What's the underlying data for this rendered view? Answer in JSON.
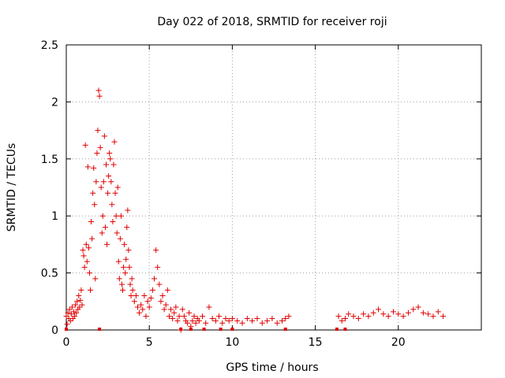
{
  "chart_data": {
    "type": "scatter",
    "title": "Day 022 of 2018, SRMTID for receiver roji",
    "xlabel": "GPS time / hours",
    "ylabel": "SRMTID / TECUs",
    "xlim": [
      0,
      25
    ],
    "ylim": [
      0,
      2.5
    ],
    "xticks": [
      "0",
      "5",
      "10",
      "15",
      "20"
    ],
    "xtick_values": [
      0,
      5,
      10,
      15,
      20
    ],
    "yticks": [
      "0",
      "0.5",
      "1",
      "1.5",
      "2",
      "2.5"
    ],
    "ytick_values": [
      0,
      0.5,
      1,
      1.5,
      2,
      2.5
    ],
    "grid": true,
    "marker": "+",
    "color": "#e00000",
    "series": [
      {
        "name": "SRMTID",
        "points": [
          [
            0.0,
            0.12
          ],
          [
            0.05,
            0.05
          ],
          [
            0.1,
            0.15
          ],
          [
            0.15,
            0.1
          ],
          [
            0.2,
            0.18
          ],
          [
            0.25,
            0.08
          ],
          [
            0.3,
            0.14
          ],
          [
            0.35,
            0.2
          ],
          [
            0.4,
            0.1
          ],
          [
            0.45,
            0.16
          ],
          [
            0.5,
            0.12
          ],
          [
            0.55,
            0.22
          ],
          [
            0.6,
            0.15
          ],
          [
            0.65,
            0.25
          ],
          [
            0.7,
            0.18
          ],
          [
            0.75,
            0.3
          ],
          [
            0.8,
            0.2
          ],
          [
            0.85,
            0.26
          ],
          [
            0.9,
            0.35
          ],
          [
            0.95,
            0.22
          ],
          [
            1.0,
            0.7
          ],
          [
            1.05,
            0.65
          ],
          [
            1.1,
            0.55
          ],
          [
            1.15,
            1.62
          ],
          [
            1.2,
            0.75
          ],
          [
            1.25,
            0.6
          ],
          [
            1.3,
            1.43
          ],
          [
            1.35,
            0.72
          ],
          [
            1.4,
            0.5
          ],
          [
            1.45,
            0.35
          ],
          [
            1.5,
            0.95
          ],
          [
            1.55,
            0.8
          ],
          [
            1.6,
            1.2
          ],
          [
            1.65,
            1.42
          ],
          [
            1.7,
            1.1
          ],
          [
            1.75,
            0.45
          ],
          [
            1.8,
            1.3
          ],
          [
            1.85,
            1.55
          ],
          [
            1.9,
            1.75
          ],
          [
            1.95,
            2.1
          ],
          [
            2.0,
            2.05
          ],
          [
            2.05,
            1.6
          ],
          [
            2.1,
            1.25
          ],
          [
            2.15,
            0.85
          ],
          [
            2.2,
            1.0
          ],
          [
            2.25,
            1.3
          ],
          [
            2.3,
            1.7
          ],
          [
            2.35,
            0.9
          ],
          [
            2.4,
            1.45
          ],
          [
            2.45,
            0.75
          ],
          [
            2.5,
            1.2
          ],
          [
            2.55,
            1.35
          ],
          [
            2.6,
            1.55
          ],
          [
            2.65,
            1.5
          ],
          [
            2.7,
            1.3
          ],
          [
            2.75,
            1.1
          ],
          [
            2.8,
            0.95
          ],
          [
            2.85,
            1.45
          ],
          [
            2.9,
            1.65
          ],
          [
            2.95,
            1.2
          ],
          [
            3.0,
            1.0
          ],
          [
            3.05,
            0.85
          ],
          [
            3.1,
            1.25
          ],
          [
            3.15,
            0.6
          ],
          [
            3.2,
            0.45
          ],
          [
            3.25,
            0.8
          ],
          [
            3.3,
            1.0
          ],
          [
            3.35,
            0.4
          ],
          [
            3.4,
            0.35
          ],
          [
            3.45,
            0.55
          ],
          [
            3.5,
            0.75
          ],
          [
            3.55,
            0.5
          ],
          [
            3.6,
            0.62
          ],
          [
            3.65,
            0.9
          ],
          [
            3.7,
            1.05
          ],
          [
            3.75,
            0.7
          ],
          [
            3.8,
            0.55
          ],
          [
            3.85,
            0.4
          ],
          [
            3.9,
            0.3
          ],
          [
            3.95,
            0.45
          ],
          [
            4.0,
            0.35
          ],
          [
            4.1,
            0.25
          ],
          [
            4.2,
            0.3
          ],
          [
            4.3,
            0.2
          ],
          [
            4.4,
            0.15
          ],
          [
            4.5,
            0.22
          ],
          [
            4.6,
            0.18
          ],
          [
            4.7,
            0.3
          ],
          [
            4.8,
            0.12
          ],
          [
            4.9,
            0.25
          ],
          [
            5.0,
            0.2
          ],
          [
            5.1,
            0.28
          ],
          [
            5.2,
            0.35
          ],
          [
            5.3,
            0.45
          ],
          [
            5.4,
            0.7
          ],
          [
            5.5,
            0.55
          ],
          [
            5.6,
            0.4
          ],
          [
            5.7,
            0.25
          ],
          [
            5.8,
            0.3
          ],
          [
            5.9,
            0.18
          ],
          [
            6.0,
            0.22
          ],
          [
            6.1,
            0.35
          ],
          [
            6.2,
            0.12
          ],
          [
            6.3,
            0.18
          ],
          [
            6.4,
            0.1
          ],
          [
            6.5,
            0.15
          ],
          [
            6.6,
            0.2
          ],
          [
            6.7,
            0.08
          ],
          [
            6.8,
            0.12
          ],
          [
            6.9,
            0.0
          ],
          [
            7.0,
            0.18
          ],
          [
            7.1,
            0.12
          ],
          [
            7.2,
            0.08
          ],
          [
            7.3,
            0.06
          ],
          [
            7.4,
            0.15
          ],
          [
            7.5,
            0.03
          ],
          [
            7.6,
            0.08
          ],
          [
            7.7,
            0.12
          ],
          [
            7.8,
            0.06
          ],
          [
            7.9,
            0.1
          ],
          [
            8.0,
            0.08
          ],
          [
            8.2,
            0.12
          ],
          [
            8.4,
            0.06
          ],
          [
            8.6,
            0.2
          ],
          [
            8.8,
            0.1
          ],
          [
            9.0,
            0.08
          ],
          [
            9.2,
            0.12
          ],
          [
            9.4,
            0.06
          ],
          [
            9.6,
            0.1
          ],
          [
            9.8,
            0.08
          ],
          [
            10.0,
            0.1
          ],
          [
            10.3,
            0.08
          ],
          [
            10.6,
            0.06
          ],
          [
            10.9,
            0.1
          ],
          [
            11.2,
            0.08
          ],
          [
            11.5,
            0.1
          ],
          [
            11.8,
            0.06
          ],
          [
            12.1,
            0.08
          ],
          [
            12.4,
            0.1
          ],
          [
            12.7,
            0.06
          ],
          [
            13.0,
            0.08
          ],
          [
            13.2,
            0.1
          ],
          [
            13.4,
            0.12
          ],
          [
            16.4,
            0.12
          ],
          [
            16.6,
            0.08
          ],
          [
            16.8,
            0.1
          ],
          [
            17.0,
            0.14
          ],
          [
            17.3,
            0.12
          ],
          [
            17.6,
            0.1
          ],
          [
            17.9,
            0.14
          ],
          [
            18.2,
            0.12
          ],
          [
            18.5,
            0.15
          ],
          [
            18.8,
            0.18
          ],
          [
            19.1,
            0.14
          ],
          [
            19.4,
            0.12
          ],
          [
            19.7,
            0.16
          ],
          [
            20.0,
            0.14
          ],
          [
            20.3,
            0.12
          ],
          [
            20.6,
            0.15
          ],
          [
            20.9,
            0.18
          ],
          [
            21.2,
            0.2
          ],
          [
            21.5,
            0.15
          ],
          [
            21.8,
            0.14
          ],
          [
            22.1,
            0.12
          ],
          [
            22.4,
            0.16
          ],
          [
            22.7,
            0.12
          ]
        ]
      }
    ],
    "zero_markers_x": [
      0.0,
      2.0,
      6.9,
      7.5,
      8.3,
      9.3,
      10.0,
      13.2,
      16.3,
      16.8
    ]
  }
}
